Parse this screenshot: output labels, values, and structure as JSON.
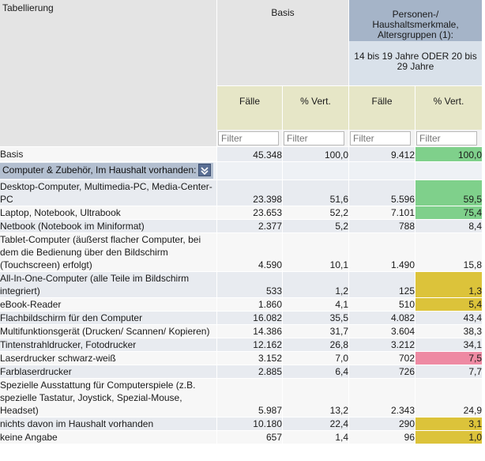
{
  "header": {
    "corner_label": "Tabellierung",
    "basis_label": "Basis",
    "group_title": "Personen-/ Haushaltsmerkmale, Altersgruppen (1):",
    "group_subtitle": "14 bis 19 Jahre ODER 20 bis 29 Jahre",
    "col_faelle": "Fälle",
    "col_vert": "% Vert.",
    "filter_placeholder": "Filter"
  },
  "colors": {
    "green": "#7fd08b",
    "yellow": "#dcc33a",
    "pink": "#ee8aa3",
    "header_blue": "#a5b4c8"
  },
  "section": {
    "label": "Computer & Zubehör, Im Haushalt vorhanden:",
    "icon": "chevron-down-icon"
  },
  "basis_row": {
    "label": "Basis",
    "b_faelle": "45.348",
    "b_vert": "100,0",
    "g_faelle": "9.412",
    "g_vert": "100,0",
    "highlight": "green"
  },
  "rows": [
    {
      "label": "Desktop-Computer, Multimedia-PC, Media-Center-PC",
      "b_faelle": "23.398",
      "b_vert": "51,6",
      "g_faelle": "5.596",
      "g_vert": "59,5",
      "highlight": "green"
    },
    {
      "label": "Laptop, Notebook, Ultrabook",
      "b_faelle": "23.653",
      "b_vert": "52,2",
      "g_faelle": "7.101",
      "g_vert": "75,4",
      "highlight": "green"
    },
    {
      "label": "Netbook (Notebook im Miniformat)",
      "b_faelle": "2.377",
      "b_vert": "5,2",
      "g_faelle": "788",
      "g_vert": "8,4",
      "highlight": ""
    },
    {
      "label": "Tablet-Computer (äußerst flacher Computer, bei dem die Bedienung über den Bildschirm (Touchscreen) erfolgt)",
      "b_faelle": "4.590",
      "b_vert": "10,1",
      "g_faelle": "1.490",
      "g_vert": "15,8",
      "highlight": ""
    },
    {
      "label": "All-In-One-Computer (alle Teile im Bildschirm integriert)",
      "b_faelle": "533",
      "b_vert": "1,2",
      "g_faelle": "125",
      "g_vert": "1,3",
      "highlight": "yellow"
    },
    {
      "label": "eBook-Reader",
      "b_faelle": "1.860",
      "b_vert": "4,1",
      "g_faelle": "510",
      "g_vert": "5,4",
      "highlight": "yellow"
    },
    {
      "label": "Flachbildschirm für den Computer",
      "b_faelle": "16.082",
      "b_vert": "35,5",
      "g_faelle": "4.082",
      "g_vert": "43,4",
      "highlight": ""
    },
    {
      "label": "Multifunktionsgerät (Drucken/ Scannen/ Kopieren)",
      "b_faelle": "14.386",
      "b_vert": "31,7",
      "g_faelle": "3.604",
      "g_vert": "38,3",
      "highlight": ""
    },
    {
      "label": "Tintenstrahldrucker, Fotodrucker",
      "b_faelle": "12.162",
      "b_vert": "26,8",
      "g_faelle": "3.212",
      "g_vert": "34,1",
      "highlight": ""
    },
    {
      "label": "Laserdrucker schwarz-weiß",
      "b_faelle": "3.152",
      "b_vert": "7,0",
      "g_faelle": "702",
      "g_vert": "7,5",
      "highlight": "pink"
    },
    {
      "label": "Farblaserdrucker",
      "b_faelle": "2.885",
      "b_vert": "6,4",
      "g_faelle": "726",
      "g_vert": "7,7",
      "highlight": ""
    },
    {
      "label": "Spezielle Ausstattung für Computerspiele (z.B. spezielle Tastatur, Joystick, Spezial-Mouse, Headset)",
      "b_faelle": "5.987",
      "b_vert": "13,2",
      "g_faelle": "2.343",
      "g_vert": "24,9",
      "highlight": ""
    },
    {
      "label": "nichts davon im Haushalt vorhanden",
      "b_faelle": "10.180",
      "b_vert": "22,4",
      "g_faelle": "290",
      "g_vert": "3,1",
      "highlight": "yellow"
    },
    {
      "label": "keine Angabe",
      "b_faelle": "657",
      "b_vert": "1,4",
      "g_faelle": "96",
      "g_vert": "1,0",
      "highlight": "yellow"
    }
  ]
}
